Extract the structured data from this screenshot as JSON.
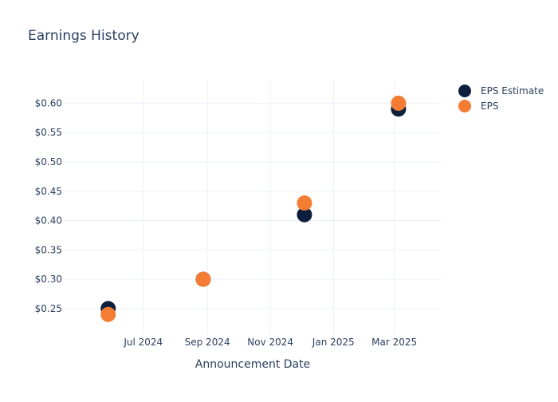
{
  "chart_data": {
    "type": "scatter",
    "title": "Earnings History",
    "xlabel": "Announcement Date",
    "ylabel": "",
    "x_axis_type": "date",
    "xlim": [
      "2024-04-15",
      "2025-04-15"
    ],
    "ylim": [
      0.205,
      0.64
    ],
    "x_ticks": [
      {
        "date": "2024-07-01",
        "label": "Jul 2024"
      },
      {
        "date": "2024-09-01",
        "label": "Sep 2024"
      },
      {
        "date": "2024-11-01",
        "label": "Nov 2024"
      },
      {
        "date": "2025-01-01",
        "label": "Jan 2025"
      },
      {
        "date": "2025-03-01",
        "label": "Mar 2025"
      }
    ],
    "y_ticks": [
      {
        "value": 0.25,
        "label": "$0.25"
      },
      {
        "value": 0.3,
        "label": "$0.30"
      },
      {
        "value": 0.35,
        "label": "$0.35"
      },
      {
        "value": 0.4,
        "label": "$0.40"
      },
      {
        "value": 0.45,
        "label": "$0.45"
      },
      {
        "value": 0.5,
        "label": "$0.50"
      },
      {
        "value": 0.55,
        "label": "$0.55"
      },
      {
        "value": 0.6,
        "label": "$0.60"
      }
    ],
    "grid": true,
    "legend_position": "top-right",
    "series": [
      {
        "name": "EPS Estimate",
        "color": "#0d1f3d",
        "points": [
          {
            "x": "2024-05-28",
            "y": 0.25
          },
          {
            "x": "2024-08-28",
            "y": 0.3
          },
          {
            "x": "2024-12-04",
            "y": 0.41
          },
          {
            "x": "2025-03-05",
            "y": 0.59
          }
        ]
      },
      {
        "name": "EPS",
        "color": "#f47c33",
        "points": [
          {
            "x": "2024-05-28",
            "y": 0.24
          },
          {
            "x": "2024-08-28",
            "y": 0.3
          },
          {
            "x": "2024-12-04",
            "y": 0.43
          },
          {
            "x": "2025-03-05",
            "y": 0.6
          }
        ]
      }
    ]
  }
}
